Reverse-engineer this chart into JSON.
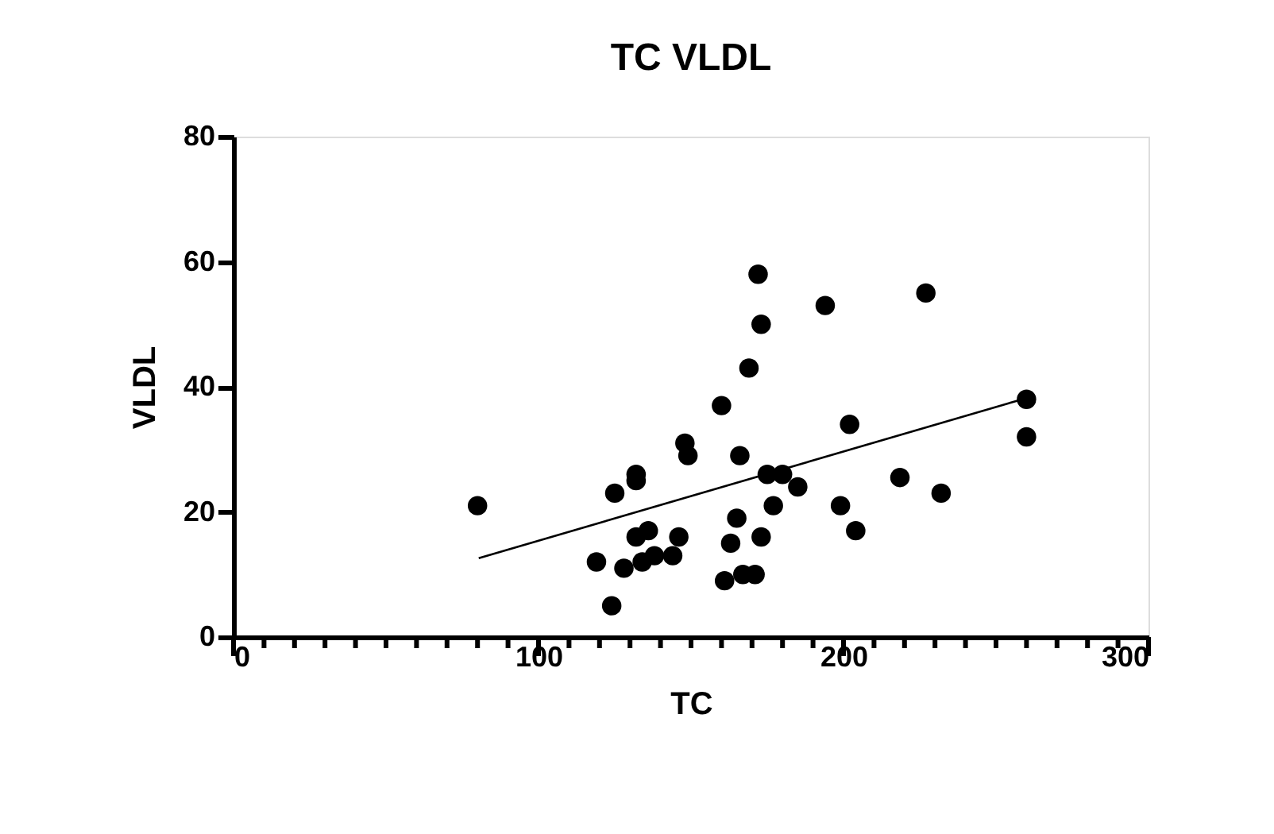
{
  "chart_data": {
    "type": "scatter",
    "title": "TC VLDL",
    "xlabel": "TC",
    "ylabel": "VLDL",
    "marker": "circle",
    "grid": false,
    "xlim": [
      0,
      300
    ],
    "ylim": [
      0,
      80
    ],
    "xticks": [
      0,
      {
        "value": 10,
        "label": null
      },
      {
        "value": 20,
        "label": null
      },
      {
        "value": 30,
        "label": null
      },
      {
        "value": 40,
        "label": null
      },
      {
        "value": 50,
        "label": null
      },
      {
        "value": 60,
        "label": null
      },
      {
        "value": 70,
        "label": null
      },
      {
        "value": 80,
        "label": null
      },
      {
        "value": 90,
        "label": null
      },
      100,
      {
        "value": 110,
        "label": null
      },
      {
        "value": 120,
        "label": null
      },
      {
        "value": 130,
        "label": null
      },
      {
        "value": 140,
        "label": null
      },
      {
        "value": 150,
        "label": null
      },
      {
        "value": 160,
        "label": null
      },
      {
        "value": 170,
        "label": null
      },
      {
        "value": 180,
        "label": null
      },
      {
        "value": 190,
        "label": null
      },
      200,
      {
        "value": 210,
        "label": null
      },
      {
        "value": 220,
        "label": null
      },
      {
        "value": 230,
        "label": null
      },
      {
        "value": 240,
        "label": null
      },
      {
        "value": 250,
        "label": null
      },
      {
        "value": 260,
        "label": null
      },
      {
        "value": 270,
        "label": null
      },
      {
        "value": 280,
        "label": null
      },
      {
        "value": 290,
        "label": null
      },
      300
    ],
    "yticks": [
      0,
      20,
      40,
      60,
      80
    ],
    "series": [
      {
        "color": "#000000",
        "x": [
          80,
          172,
          194,
          227,
          173,
          169,
          160,
          260,
          260,
          202,
          148,
          149,
          166,
          132,
          132,
          125,
          175,
          180,
          185,
          218.5,
          232,
          199,
          177,
          204,
          165,
          136,
          132,
          146,
          173,
          163,
          119,
          128,
          134,
          138,
          144,
          161,
          167,
          171,
          124
        ],
        "values": [
          21,
          58,
          53,
          55,
          50,
          43,
          37,
          38,
          32,
          34,
          31,
          29,
          29,
          26,
          25,
          23,
          26,
          26,
          24,
          25.5,
          23,
          21,
          21,
          17,
          19,
          17,
          16,
          16,
          16,
          15,
          12,
          11,
          12,
          13,
          13,
          9,
          10,
          10,
          5
        ]
      },
      {
        "type": "line",
        "color": "#000000",
        "line_style": "solid",
        "marker": "none",
        "x": [
          80.4,
          260
        ],
        "values": [
          12.6,
          38.2
        ]
      }
    ]
  }
}
